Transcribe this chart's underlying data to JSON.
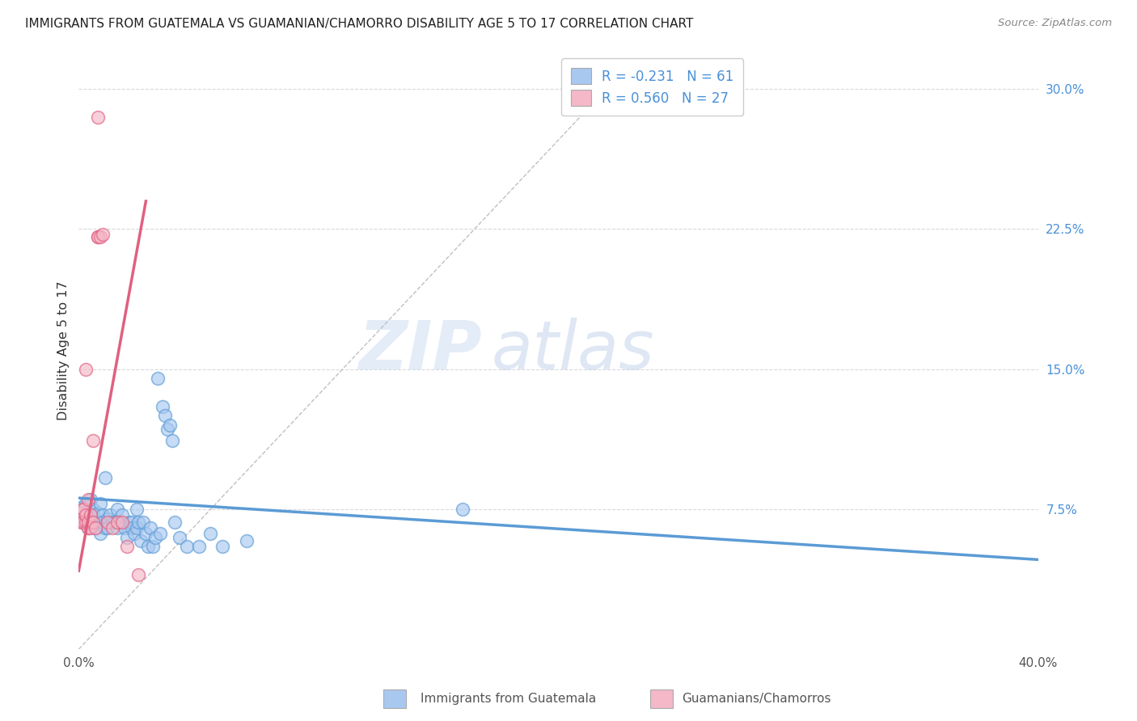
{
  "title": "IMMIGRANTS FROM GUATEMALA VS GUAMANIAN/CHAMORRO DISABILITY AGE 5 TO 17 CORRELATION CHART",
  "source": "Source: ZipAtlas.com",
  "ylabel": "Disability Age 5 to 17",
  "xlim": [
    0.0,
    0.4
  ],
  "ylim": [
    0.0,
    0.32
  ],
  "xticks": [
    0.0,
    0.1,
    0.2,
    0.3,
    0.4
  ],
  "xticklabels": [
    "0.0%",
    "",
    "",
    "",
    "40.0%"
  ],
  "yticks_right": [
    0.0,
    0.075,
    0.15,
    0.225,
    0.3
  ],
  "yticklabels_right": [
    "",
    "7.5%",
    "15.0%",
    "22.5%",
    "30.0%"
  ],
  "legend_R1": "-0.231",
  "legend_N1": "61",
  "legend_R2": "0.560",
  "legend_N2": "27",
  "color_blue": "#a8c8f0",
  "color_blue_dark": "#5b9bd5",
  "color_pink": "#f4b8c8",
  "color_pink_dark": "#e06080",
  "color_blue_text": "#4a90d9",
  "watermark_zip": "ZIP",
  "watermark_atlas": "atlas",
  "blue_scatter": [
    [
      0.001,
      0.076
    ],
    [
      0.002,
      0.073
    ],
    [
      0.002,
      0.068
    ],
    [
      0.003,
      0.072
    ],
    [
      0.003,
      0.078
    ],
    [
      0.004,
      0.07
    ],
    [
      0.004,
      0.065
    ],
    [
      0.005,
      0.073
    ],
    [
      0.005,
      0.08
    ],
    [
      0.006,
      0.068
    ],
    [
      0.006,
      0.075
    ],
    [
      0.007,
      0.065
    ],
    [
      0.007,
      0.07
    ],
    [
      0.008,
      0.073
    ],
    [
      0.008,
      0.068
    ],
    [
      0.009,
      0.062
    ],
    [
      0.009,
      0.078
    ],
    [
      0.01,
      0.072
    ],
    [
      0.01,
      0.068
    ],
    [
      0.011,
      0.065
    ],
    [
      0.011,
      0.092
    ],
    [
      0.012,
      0.07
    ],
    [
      0.012,
      0.065
    ],
    [
      0.013,
      0.072
    ],
    [
      0.014,
      0.068
    ],
    [
      0.015,
      0.068
    ],
    [
      0.016,
      0.075
    ],
    [
      0.016,
      0.065
    ],
    [
      0.017,
      0.068
    ],
    [
      0.018,
      0.072
    ],
    [
      0.019,
      0.065
    ],
    [
      0.02,
      0.06
    ],
    [
      0.021,
      0.068
    ],
    [
      0.022,
      0.068
    ],
    [
      0.022,
      0.065
    ],
    [
      0.023,
      0.062
    ],
    [
      0.024,
      0.075
    ],
    [
      0.024,
      0.065
    ],
    [
      0.025,
      0.068
    ],
    [
      0.026,
      0.058
    ],
    [
      0.027,
      0.068
    ],
    [
      0.028,
      0.062
    ],
    [
      0.029,
      0.055
    ],
    [
      0.03,
      0.065
    ],
    [
      0.031,
      0.055
    ],
    [
      0.032,
      0.06
    ],
    [
      0.033,
      0.145
    ],
    [
      0.034,
      0.062
    ],
    [
      0.035,
      0.13
    ],
    [
      0.036,
      0.125
    ],
    [
      0.037,
      0.118
    ],
    [
      0.038,
      0.12
    ],
    [
      0.039,
      0.112
    ],
    [
      0.04,
      0.068
    ],
    [
      0.042,
      0.06
    ],
    [
      0.045,
      0.055
    ],
    [
      0.05,
      0.055
    ],
    [
      0.055,
      0.062
    ],
    [
      0.06,
      0.055
    ],
    [
      0.07,
      0.058
    ],
    [
      0.16,
      0.075
    ]
  ],
  "pink_scatter": [
    [
      0.001,
      0.073
    ],
    [
      0.001,
      0.068
    ],
    [
      0.002,
      0.075
    ],
    [
      0.002,
      0.068
    ],
    [
      0.002,
      0.075
    ],
    [
      0.003,
      0.068
    ],
    [
      0.003,
      0.072
    ],
    [
      0.003,
      0.15
    ],
    [
      0.004,
      0.065
    ],
    [
      0.004,
      0.08
    ],
    [
      0.004,
      0.068
    ],
    [
      0.005,
      0.065
    ],
    [
      0.005,
      0.072
    ],
    [
      0.006,
      0.112
    ],
    [
      0.006,
      0.068
    ],
    [
      0.007,
      0.065
    ],
    [
      0.008,
      0.221
    ],
    [
      0.008,
      0.221
    ],
    [
      0.008,
      0.285
    ],
    [
      0.009,
      0.221
    ],
    [
      0.01,
      0.222
    ],
    [
      0.012,
      0.068
    ],
    [
      0.014,
      0.065
    ],
    [
      0.016,
      0.068
    ],
    [
      0.018,
      0.068
    ],
    [
      0.02,
      0.055
    ],
    [
      0.025,
      0.04
    ]
  ],
  "blue_line_x": [
    0.0,
    0.4
  ],
  "blue_line_y": [
    0.081,
    0.048
  ],
  "pink_line_x": [
    0.0,
    0.028
  ],
  "pink_line_y": [
    0.042,
    0.24
  ],
  "diag_line_x": [
    0.0,
    0.22
  ],
  "diag_line_y": [
    0.0,
    0.3
  ]
}
